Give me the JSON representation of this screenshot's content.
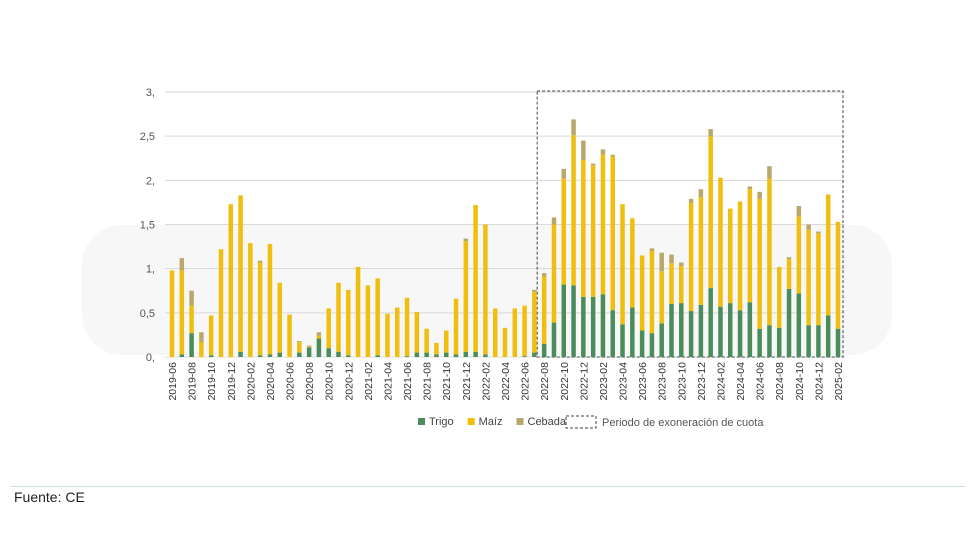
{
  "chart_data": {
    "type": "bar",
    "stacked": true,
    "title": "",
    "xlabel": "",
    "ylabel": "",
    "ylim": [
      0,
      3
    ],
    "yticks": [
      "0,",
      "0,5",
      "1,",
      "1,5",
      "2,",
      "2,5",
      "3,"
    ],
    "grid": true,
    "legend_position": "bottom",
    "categories": [
      "2019-06",
      "2019-07",
      "2019-08",
      "2019-09",
      "2019-10",
      "2019-11",
      "2019-12",
      "2020-01",
      "2020-02",
      "2020-03",
      "2020-04",
      "2020-05",
      "2020-06",
      "2020-07",
      "2020-08",
      "2020-09",
      "2020-10",
      "2020-11",
      "2020-12",
      "2021-01",
      "2021-02",
      "2021-03",
      "2021-04",
      "2021-05",
      "2021-06",
      "2021-07",
      "2021-08",
      "2021-09",
      "2021-10",
      "2021-11",
      "2021-12",
      "2022-01",
      "2022-02",
      "2022-03",
      "2022-04",
      "2022-05",
      "2022-06",
      "2022-07",
      "2022-08",
      "2022-09",
      "2022-10",
      "2022-11",
      "2022-12",
      "2023-01",
      "2023-02",
      "2023-03",
      "2023-04",
      "2023-05",
      "2023-06",
      "2023-07",
      "2023-08",
      "2023-09",
      "2023-10",
      "2023-11",
      "2023-12",
      "2024-01",
      "2024-02",
      "2024-03",
      "2024-04",
      "2024-05",
      "2024-06",
      "2024-07",
      "2024-08",
      "2024-09",
      "2024-10",
      "2024-11",
      "2024-12",
      "2025-01",
      "2025-02"
    ],
    "series": [
      {
        "name": "Trigo",
        "color": "#4a8c5c",
        "values": [
          0,
          0.03,
          0.27,
          0,
          0.02,
          0,
          0,
          0.06,
          0,
          0.02,
          0.03,
          0.05,
          0,
          0.05,
          0.11,
          0.21,
          0.1,
          0.06,
          0.02,
          0,
          0,
          0.02,
          0,
          0,
          0.01,
          0.05,
          0.05,
          0.03,
          0.05,
          0.03,
          0.06,
          0.06,
          0.03,
          0,
          0,
          0,
          0.01,
          0.05,
          0.15,
          0.39,
          0.82,
          0.81,
          0.68,
          0.68,
          0.71,
          0.53,
          0.37,
          0.56,
          0.3,
          0.27,
          0.38,
          0.6,
          0.61,
          0.52,
          0.59,
          0.78,
          0.57,
          0.61,
          0.53,
          0.62,
          0.32,
          0.36,
          0.33,
          0.77,
          0.72,
          0.36,
          0.36,
          0.47,
          0.32
        ]
      },
      {
        "name": "Maíz",
        "color": "#f0be0f",
        "values": [
          0.98,
          0.95,
          0.31,
          0.17,
          0.45,
          1.22,
          1.73,
          1.77,
          1.29,
          1.05,
          1.25,
          0.79,
          0.48,
          0.12,
          0.01,
          0.03,
          0.45,
          0.78,
          0.74,
          1.02,
          0.81,
          0.87,
          0.49,
          0.56,
          0.66,
          0.46,
          0.27,
          0.13,
          0.25,
          0.63,
          1.25,
          1.66,
          1.47,
          0.55,
          0.33,
          0.55,
          0.57,
          0.69,
          0.76,
          1.11,
          1.2,
          1.7,
          1.55,
          1.49,
          1.58,
          1.74,
          1.36,
          1.01,
          0.85,
          0.93,
          0.59,
          0.46,
          0.42,
          1.22,
          1.22,
          1.72,
          1.46,
          1.07,
          1.23,
          1.28,
          1.47,
          1.66,
          0.69,
          0.34,
          0.87,
          1.08,
          1.04,
          1.37,
          1.21
        ]
      },
      {
        "name": "Cebada",
        "color": "#b8a86a",
        "values": [
          0,
          0.14,
          0.17,
          0.11,
          0,
          0,
          0,
          0,
          0,
          0.02,
          0,
          0,
          0,
          0.01,
          0.01,
          0.04,
          0,
          0,
          0,
          0,
          0,
          0,
          0,
          0,
          0,
          0,
          0,
          0,
          0,
          0,
          0.03,
          0,
          0,
          0,
          0,
          0,
          0,
          0.02,
          0.04,
          0.08,
          0.11,
          0.18,
          0.22,
          0.02,
          0.06,
          0.02,
          0,
          0,
          0,
          0.03,
          0.21,
          0.1,
          0.04,
          0.05,
          0.09,
          0.08,
          0,
          0,
          0,
          0.03,
          0.08,
          0.14,
          0,
          0.02,
          0.12,
          0.06,
          0.02,
          0,
          0
        ]
      }
    ],
    "annotation": {
      "label": "Periodo de exoneración de cuota",
      "from": "2022-08",
      "to": "2025-02",
      "style": "dashed box"
    }
  },
  "source": "Fuente: CE"
}
